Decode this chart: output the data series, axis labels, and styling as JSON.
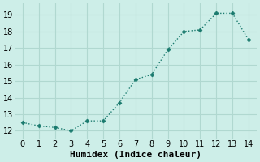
{
  "x": [
    0,
    1,
    2,
    3,
    4,
    5,
    6,
    7,
    8,
    9,
    10,
    11,
    12,
    13,
    14
  ],
  "y": [
    12.5,
    12.3,
    12.2,
    12.0,
    12.6,
    12.6,
    13.7,
    15.1,
    15.4,
    16.9,
    18.0,
    18.1,
    19.1,
    19.1,
    17.5
  ],
  "line_color": "#1a7a6e",
  "marker": "D",
  "marker_size": 2.5,
  "background_color": "#cdeee8",
  "grid_color": "#b0d8d0",
  "xlabel": "Humidex (Indice chaleur)",
  "xlabel_fontsize": 8,
  "tick_fontsize": 7,
  "xlim": [
    -0.5,
    14.5
  ],
  "ylim": [
    11.5,
    19.7
  ],
  "yticks": [
    12,
    13,
    14,
    15,
    16,
    17,
    18,
    19
  ],
  "xticks": [
    0,
    1,
    2,
    3,
    4,
    5,
    6,
    7,
    8,
    9,
    10,
    11,
    12,
    13,
    14
  ]
}
